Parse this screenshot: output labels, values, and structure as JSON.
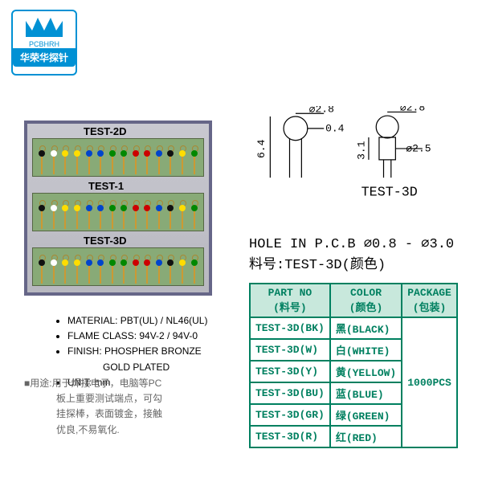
{
  "logo": {
    "small": "PCBHRH",
    "main": "华荣华探针"
  },
  "photo": {
    "labels": [
      "TEST-2D",
      "TEST-1",
      "TEST-3D"
    ],
    "pin_colors": [
      "#111111",
      "#ffffff",
      "#ffdd00",
      "#ffdd00",
      "#0044cc",
      "#0044cc",
      "#008800",
      "#008800",
      "#cc0000",
      "#cc0000",
      "#0044cc",
      "#111111",
      "#ffdd00",
      "#008800"
    ]
  },
  "specs": {
    "material": "MATERIAL: PBT(UL) / NL46(UL)",
    "flame": "FLAME CLASS: 94V-2 / 94V-0",
    "finish1": "FINISH: PHOSPHER BRONZE",
    "finish2": "GOLD PLATED",
    "unit": "UNIT: mm"
  },
  "usage": {
    "prefix": "■用途:",
    "line1": "用于焊接电子，电脑等PC",
    "line2": "板上重要测试端点，可勾",
    "line3": "挂探棒，表面镀金，接触",
    "line4": "优良,不易氧化."
  },
  "drawing": {
    "label": "TEST-3D",
    "d28a": "⌀2.8",
    "d28b": "⌀2.8",
    "d25": "⌀2.5",
    "w04": "0.4",
    "h64": "6.4",
    "h31": "3.1"
  },
  "info": {
    "hole": "HOLE IN P.C.B ⌀0.8 - ⌀3.0",
    "part": "料号:TEST-3D(颜色)"
  },
  "table": {
    "headers": {
      "partno": "PART NO",
      "partno_sub": "(料号)",
      "color": "COLOR",
      "color_sub": "(颜色)",
      "pkg": "PACKAGE",
      "pkg_sub": "(包装)"
    },
    "rows": [
      {
        "pn": "TEST-3D(BK)",
        "color": "黑(BLACK)"
      },
      {
        "pn": "TEST-3D(W)",
        "color": "白(WHITE)"
      },
      {
        "pn": "TEST-3D(Y)",
        "color": "黄(YELLOW)"
      },
      {
        "pn": "TEST-3D(BU)",
        "color": "蓝(BLUE)"
      },
      {
        "pn": "TEST-3D(GR)",
        "color": "绿(GREEN)"
      },
      {
        "pn": "TEST-3D(R)",
        "color": "红(RED)"
      }
    ],
    "package": "1000PCS"
  }
}
